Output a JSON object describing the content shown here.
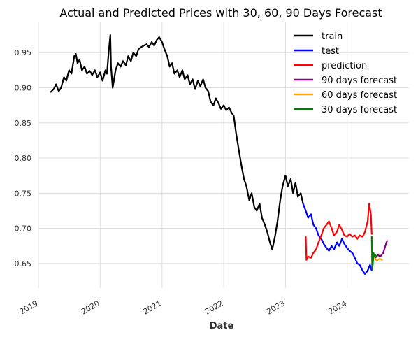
{
  "chart_data": {
    "type": "line",
    "title": "Actual and Predicted Prices with 30, 60, 90 Days Forecast",
    "xlabel": "Date",
    "ylabel": "",
    "x_axis_type": "date",
    "xlim": [
      "2019-01-01",
      "2024-12-31"
    ],
    "ylim": [
      0.615,
      0.993
    ],
    "x_ticks": [
      {
        "date": "2019-01-01",
        "label": "2019"
      },
      {
        "date": "2020-01-01",
        "label": "2020"
      },
      {
        "date": "2021-01-01",
        "label": "2021"
      },
      {
        "date": "2022-01-01",
        "label": "2022"
      },
      {
        "date": "2023-01-01",
        "label": "2023"
      },
      {
        "date": "2024-01-01",
        "label": "2024"
      }
    ],
    "y_ticks": [
      0.65,
      0.7,
      0.75,
      0.8,
      0.85,
      0.9,
      0.95
    ],
    "y_tick_labels": [
      "0.65",
      "0.70",
      "0.75",
      "0.80",
      "0.85",
      "0.90",
      "0.95"
    ],
    "grid": true,
    "legend_position": "top-right",
    "series": [
      {
        "name": "train",
        "color": "#000000",
        "points": [
          [
            "2019-03-15",
            0.894
          ],
          [
            "2019-04-01",
            0.898
          ],
          [
            "2019-04-15",
            0.905
          ],
          [
            "2019-05-01",
            0.895
          ],
          [
            "2019-05-15",
            0.9
          ],
          [
            "2019-06-01",
            0.915
          ],
          [
            "2019-06-15",
            0.91
          ],
          [
            "2019-07-01",
            0.925
          ],
          [
            "2019-07-15",
            0.92
          ],
          [
            "2019-08-01",
            0.945
          ],
          [
            "2019-08-10",
            0.948
          ],
          [
            "2019-08-20",
            0.935
          ],
          [
            "2019-09-01",
            0.94
          ],
          [
            "2019-09-15",
            0.925
          ],
          [
            "2019-10-01",
            0.93
          ],
          [
            "2019-10-15",
            0.92
          ],
          [
            "2019-11-01",
            0.924
          ],
          [
            "2019-11-15",
            0.918
          ],
          [
            "2019-12-01",
            0.925
          ],
          [
            "2019-12-15",
            0.915
          ],
          [
            "2020-01-01",
            0.922
          ],
          [
            "2020-01-15",
            0.91
          ],
          [
            "2020-02-01",
            0.925
          ],
          [
            "2020-02-10",
            0.92
          ],
          [
            "2020-02-20",
            0.95
          ],
          [
            "2020-03-01",
            0.975
          ],
          [
            "2020-03-05",
            0.93
          ],
          [
            "2020-03-15",
            0.9
          ],
          [
            "2020-04-01",
            0.925
          ],
          [
            "2020-04-15",
            0.935
          ],
          [
            "2020-05-01",
            0.93
          ],
          [
            "2020-05-15",
            0.938
          ],
          [
            "2020-06-01",
            0.932
          ],
          [
            "2020-06-15",
            0.945
          ],
          [
            "2020-07-01",
            0.938
          ],
          [
            "2020-07-15",
            0.95
          ],
          [
            "2020-08-01",
            0.945
          ],
          [
            "2020-08-15",
            0.955
          ],
          [
            "2020-09-01",
            0.958
          ],
          [
            "2020-09-15",
            0.96
          ],
          [
            "2020-10-01",
            0.962
          ],
          [
            "2020-10-15",
            0.958
          ],
          [
            "2020-11-01",
            0.965
          ],
          [
            "2020-11-15",
            0.96
          ],
          [
            "2020-12-01",
            0.968
          ],
          [
            "2020-12-15",
            0.972
          ],
          [
            "2021-01-01",
            0.965
          ],
          [
            "2021-01-15",
            0.955
          ],
          [
            "2021-02-01",
            0.945
          ],
          [
            "2021-02-15",
            0.93
          ],
          [
            "2021-03-01",
            0.935
          ],
          [
            "2021-03-15",
            0.92
          ],
          [
            "2021-04-01",
            0.925
          ],
          [
            "2021-04-15",
            0.915
          ],
          [
            "2021-05-01",
            0.925
          ],
          [
            "2021-05-15",
            0.912
          ],
          [
            "2021-06-01",
            0.918
          ],
          [
            "2021-06-15",
            0.905
          ],
          [
            "2021-07-01",
            0.912
          ],
          [
            "2021-07-15",
            0.898
          ],
          [
            "2021-08-01",
            0.91
          ],
          [
            "2021-08-15",
            0.902
          ],
          [
            "2021-09-01",
            0.912
          ],
          [
            "2021-09-15",
            0.9
          ],
          [
            "2021-10-01",
            0.895
          ],
          [
            "2021-10-15",
            0.88
          ],
          [
            "2021-11-01",
            0.875
          ],
          [
            "2021-11-15",
            0.885
          ],
          [
            "2021-12-01",
            0.878
          ],
          [
            "2021-12-15",
            0.87
          ],
          [
            "2022-01-01",
            0.875
          ],
          [
            "2022-01-15",
            0.868
          ],
          [
            "2022-02-01",
            0.872
          ],
          [
            "2022-02-15",
            0.865
          ],
          [
            "2022-03-01",
            0.86
          ],
          [
            "2022-03-15",
            0.835
          ],
          [
            "2022-04-01",
            0.81
          ],
          [
            "2022-04-15",
            0.79
          ],
          [
            "2022-05-01",
            0.77
          ],
          [
            "2022-05-15",
            0.76
          ],
          [
            "2022-06-01",
            0.74
          ],
          [
            "2022-06-15",
            0.75
          ],
          [
            "2022-07-01",
            0.73
          ],
          [
            "2022-07-15",
            0.725
          ],
          [
            "2022-08-01",
            0.735
          ],
          [
            "2022-08-15",
            0.715
          ],
          [
            "2022-09-01",
            0.705
          ],
          [
            "2022-09-15",
            0.695
          ],
          [
            "2022-10-01",
            0.68
          ],
          [
            "2022-10-15",
            0.67
          ],
          [
            "2022-11-01",
            0.69
          ],
          [
            "2022-11-15",
            0.71
          ],
          [
            "2022-12-01",
            0.74
          ],
          [
            "2022-12-15",
            0.76
          ],
          [
            "2023-01-01",
            0.775
          ],
          [
            "2023-01-15",
            0.76
          ],
          [
            "2023-02-01",
            0.77
          ],
          [
            "2023-02-15",
            0.75
          ],
          [
            "2023-03-01",
            0.765
          ],
          [
            "2023-03-15",
            0.745
          ],
          [
            "2023-04-01",
            0.75
          ],
          [
            "2023-04-15",
            0.735
          ]
        ]
      },
      {
        "name": "test",
        "color": "#0000ff",
        "points": [
          [
            "2023-04-15",
            0.735
          ],
          [
            "2023-05-01",
            0.725
          ],
          [
            "2023-05-15",
            0.715
          ],
          [
            "2023-06-01",
            0.72
          ],
          [
            "2023-06-15",
            0.705
          ],
          [
            "2023-07-01",
            0.7
          ],
          [
            "2023-07-15",
            0.69
          ],
          [
            "2023-08-01",
            0.685
          ],
          [
            "2023-08-15",
            0.678
          ],
          [
            "2023-09-01",
            0.672
          ],
          [
            "2023-09-15",
            0.668
          ],
          [
            "2023-10-01",
            0.675
          ],
          [
            "2023-10-15",
            0.67
          ],
          [
            "2023-11-01",
            0.68
          ],
          [
            "2023-11-15",
            0.675
          ],
          [
            "2023-12-01",
            0.685
          ],
          [
            "2023-12-15",
            0.678
          ],
          [
            "2024-01-01",
            0.672
          ],
          [
            "2024-01-15",
            0.668
          ],
          [
            "2024-02-01",
            0.665
          ],
          [
            "2024-02-15",
            0.658
          ],
          [
            "2024-03-01",
            0.65
          ],
          [
            "2024-03-15",
            0.648
          ],
          [
            "2024-04-01",
            0.64
          ],
          [
            "2024-04-15",
            0.635
          ],
          [
            "2024-05-01",
            0.64
          ],
          [
            "2024-05-15",
            0.648
          ],
          [
            "2024-05-25",
            0.64
          ]
        ]
      },
      {
        "name": "prediction",
        "color": "#ff0000",
        "points": [
          [
            "2023-05-01",
            0.688
          ],
          [
            "2023-05-05",
            0.655
          ],
          [
            "2023-05-15",
            0.66
          ],
          [
            "2023-06-01",
            0.658
          ],
          [
            "2023-06-15",
            0.665
          ],
          [
            "2023-07-01",
            0.67
          ],
          [
            "2023-07-15",
            0.68
          ],
          [
            "2023-08-01",
            0.69
          ],
          [
            "2023-08-15",
            0.7
          ],
          [
            "2023-09-01",
            0.705
          ],
          [
            "2023-09-15",
            0.71
          ],
          [
            "2023-10-01",
            0.7
          ],
          [
            "2023-10-15",
            0.69
          ],
          [
            "2023-11-01",
            0.695
          ],
          [
            "2023-11-15",
            0.705
          ],
          [
            "2023-12-01",
            0.698
          ],
          [
            "2023-12-15",
            0.69
          ],
          [
            "2024-01-01",
            0.688
          ],
          [
            "2024-01-15",
            0.692
          ],
          [
            "2024-02-01",
            0.688
          ],
          [
            "2024-02-15",
            0.69
          ],
          [
            "2024-03-01",
            0.685
          ],
          [
            "2024-03-15",
            0.69
          ],
          [
            "2024-04-01",
            0.688
          ],
          [
            "2024-04-15",
            0.695
          ],
          [
            "2024-05-01",
            0.71
          ],
          [
            "2024-05-10",
            0.735
          ],
          [
            "2024-05-20",
            0.72
          ],
          [
            "2024-05-25",
            0.692
          ]
        ]
      },
      {
        "name": "90 days forecast",
        "color": "#800080",
        "points": [
          [
            "2024-05-25",
            0.66
          ],
          [
            "2024-06-15",
            0.658
          ],
          [
            "2024-07-01",
            0.662
          ],
          [
            "2024-07-15",
            0.66
          ],
          [
            "2024-08-01",
            0.665
          ],
          [
            "2024-08-10",
            0.672
          ],
          [
            "2024-08-20",
            0.68
          ],
          [
            "2024-08-25",
            0.682
          ]
        ]
      },
      {
        "name": "60 days forecast",
        "color": "#ffa500",
        "points": [
          [
            "2024-05-25",
            0.66
          ],
          [
            "2024-06-10",
            0.658
          ],
          [
            "2024-06-25",
            0.654
          ],
          [
            "2024-07-10",
            0.657
          ],
          [
            "2024-07-25",
            0.655
          ]
        ]
      },
      {
        "name": "30 days forecast",
        "color": "#008000",
        "points": [
          [
            "2024-05-25",
            0.688
          ],
          [
            "2024-05-28",
            0.642
          ],
          [
            "2024-06-01",
            0.65
          ],
          [
            "2024-06-05",
            0.665
          ],
          [
            "2024-06-10",
            0.66
          ],
          [
            "2024-06-15",
            0.662
          ],
          [
            "2024-06-24",
            0.66
          ]
        ]
      }
    ]
  }
}
